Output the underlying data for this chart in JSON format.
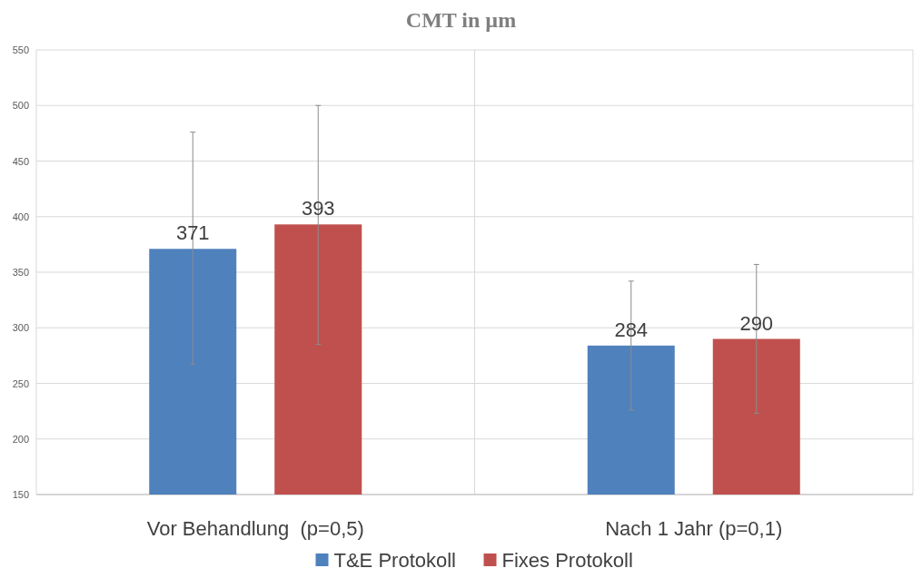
{
  "chart_data": {
    "type": "bar",
    "title": "CMT in µm",
    "categories": [
      "Vor Behandlung  (p=0,5)",
      "Nach 1 Jahr (p=0,1)"
    ],
    "series": [
      {
        "name": "T&E Protokoll",
        "color": "#4f81bd",
        "values": [
          371,
          284
        ],
        "errors": [
          [
            267,
            476
          ],
          [
            226,
            342
          ]
        ]
      },
      {
        "name": "Fixes Protokoll",
        "color": "#c0504d",
        "values": [
          393,
          290
        ],
        "errors": [
          [
            285,
            500
          ],
          [
            223,
            357
          ]
        ]
      }
    ],
    "ylim": [
      150,
      550
    ],
    "yticks": [
      150,
      200,
      250,
      300,
      350,
      400,
      450,
      500,
      550
    ],
    "grid": true,
    "legend": "bottom",
    "data_labels": true
  }
}
